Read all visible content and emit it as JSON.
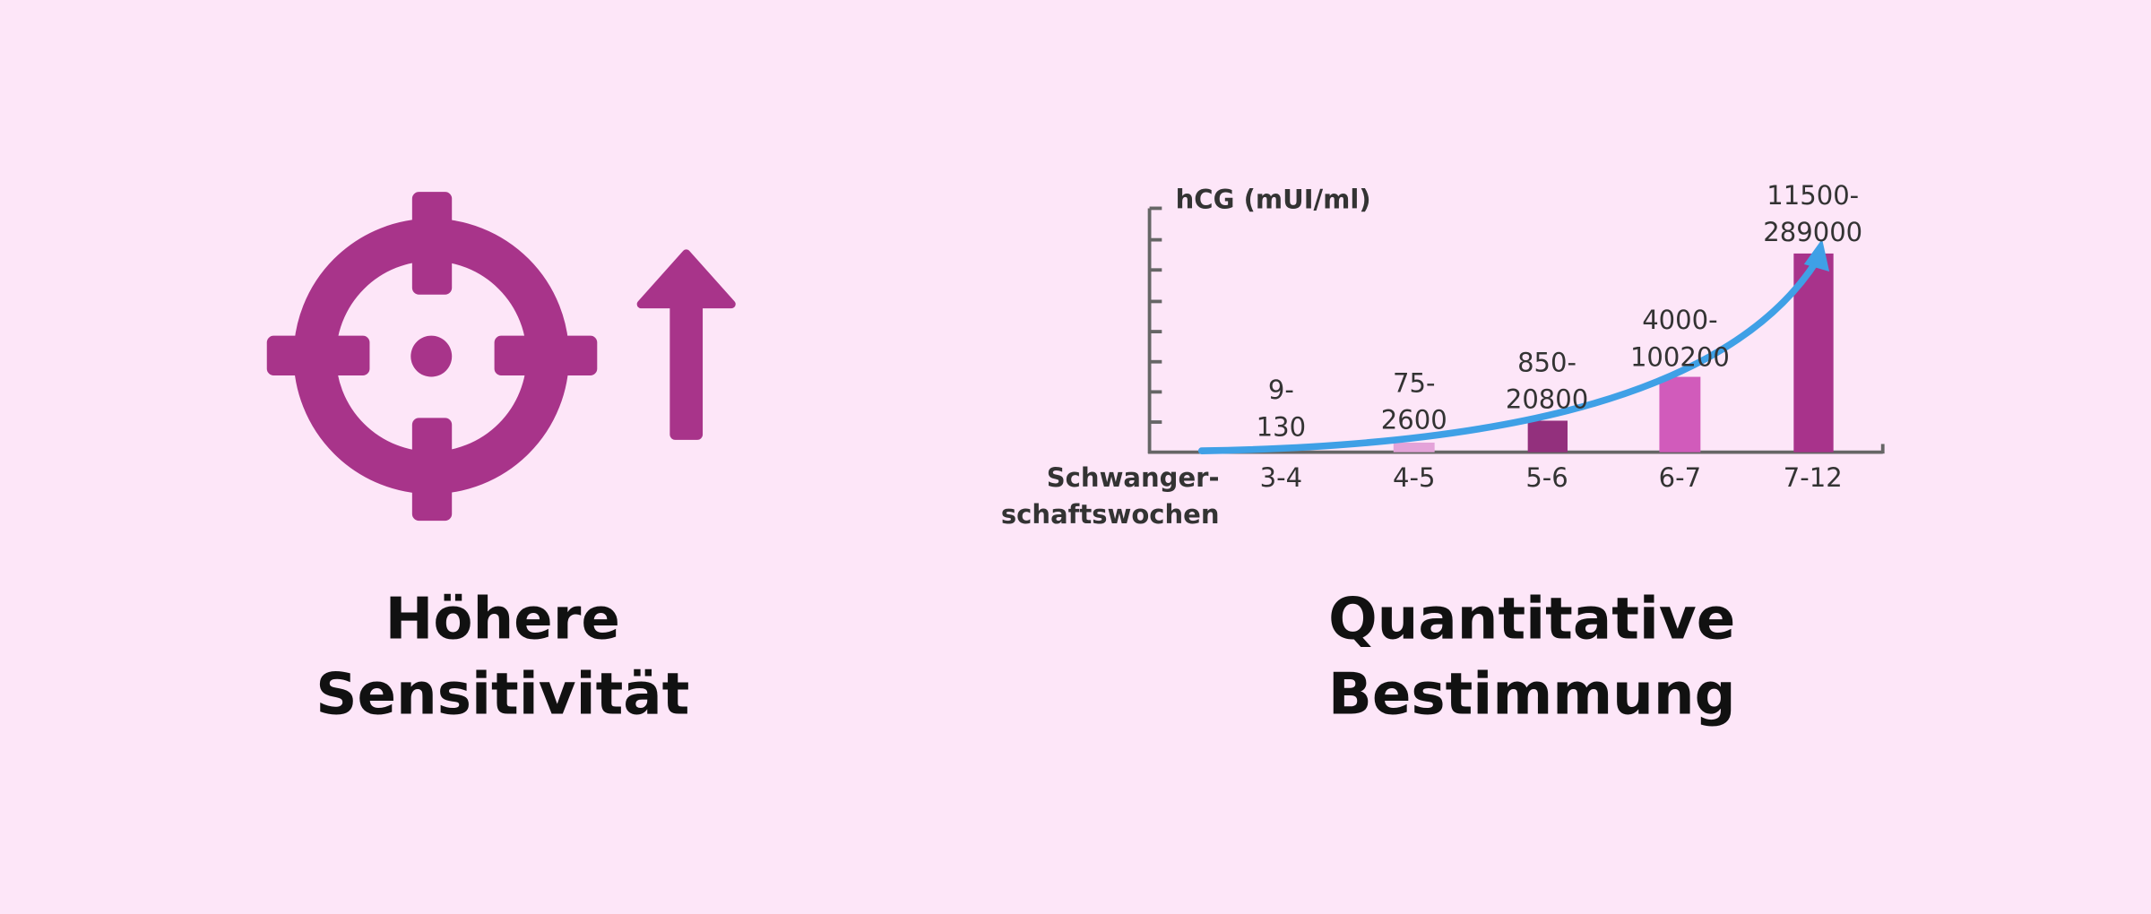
{
  "left_panel": {
    "caption": [
      "Höhere",
      "Sensitivität"
    ]
  },
  "right_panel": {
    "caption": [
      "Quantitative",
      "Bestimmung"
    ],
    "chart": {
      "y_label": "hCG (mUI/ml)",
      "x_label": [
        "Schwanger-",
        "schaftswochen"
      ],
      "categories": [
        "3-4",
        "4-5",
        "5-6",
        "6-7",
        "7-12"
      ],
      "ranges": [
        [
          "9-",
          "130"
        ],
        [
          "75-",
          "2600"
        ],
        [
          "850-",
          "20800"
        ],
        [
          "4000-",
          "100200"
        ],
        [
          "11500-",
          "289000"
        ]
      ]
    }
  }
}
